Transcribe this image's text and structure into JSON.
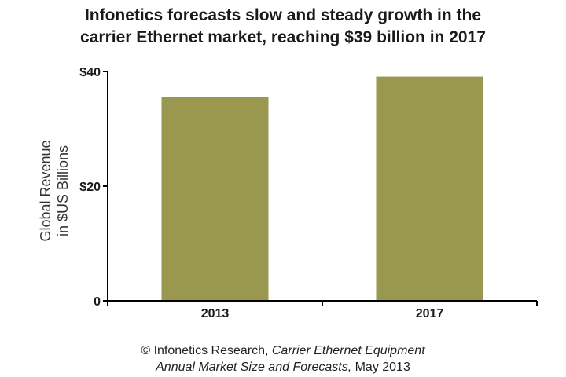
{
  "title": {
    "line1": "Infonetics forecasts slow and steady growth in the",
    "line2": "carrier Ethernet market, reaching $39 billion in 2017"
  },
  "chart_data": {
    "type": "bar",
    "categories": [
      "2013",
      "2017"
    ],
    "values": [
      35.5,
      39.1
    ],
    "title": "Infonetics forecasts slow and steady growth in the carrier Ethernet market, reaching $39 billion in 2017",
    "ylabel_line1": "Global Revenue",
    "ylabel_line2": "in $US Billions",
    "xlabel": "",
    "ylim": [
      0,
      40
    ],
    "yticks": [
      0,
      20,
      40
    ],
    "ytick_labels": [
      "0",
      "$20",
      "$40"
    ],
    "bar_color": "#9a974f",
    "grid": false
  },
  "footer": {
    "line1_prefix": "© Infonetics Research, ",
    "line1_italic": "Carrier Ethernet Equipment",
    "line2_italic": "Annual Market Size and Forecasts,",
    "line2_suffix": " May 2013"
  }
}
